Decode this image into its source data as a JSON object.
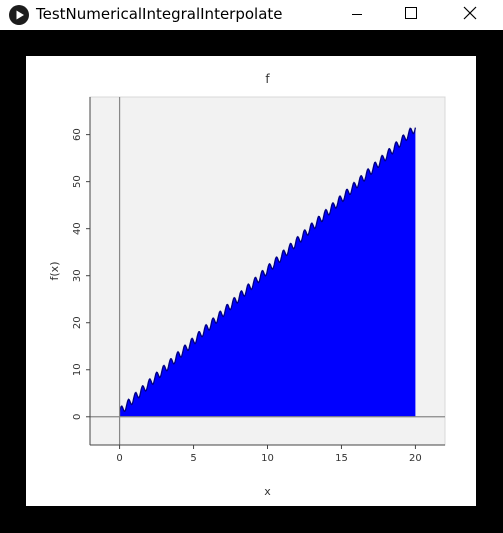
{
  "window": {
    "title": "TestNumericalIntegralInterpolate",
    "icon": "play-circle-icon",
    "controls": [
      "minimize-icon",
      "maximize-icon",
      "close-icon"
    ]
  },
  "chart_data": {
    "type": "area",
    "title": "f",
    "xlabel": "x",
    "ylabel": "f(x)",
    "xlim": [
      -2,
      22
    ],
    "ylim": [
      -6,
      68
    ],
    "xticks": [
      0,
      5,
      10,
      15,
      20
    ],
    "yticks": [
      0,
      10,
      20,
      30,
      40,
      50,
      60
    ],
    "grid": false,
    "background": "#f2f2f2",
    "fill_color": "#0000ff",
    "line_color": "#000080",
    "series": [
      {
        "x": [
          0,
          20
        ],
        "y": [
          1,
          61.5
        ]
      }
    ],
    "fill_to": 0,
    "annotation": "small periodic ripple along the upper edge"
  }
}
